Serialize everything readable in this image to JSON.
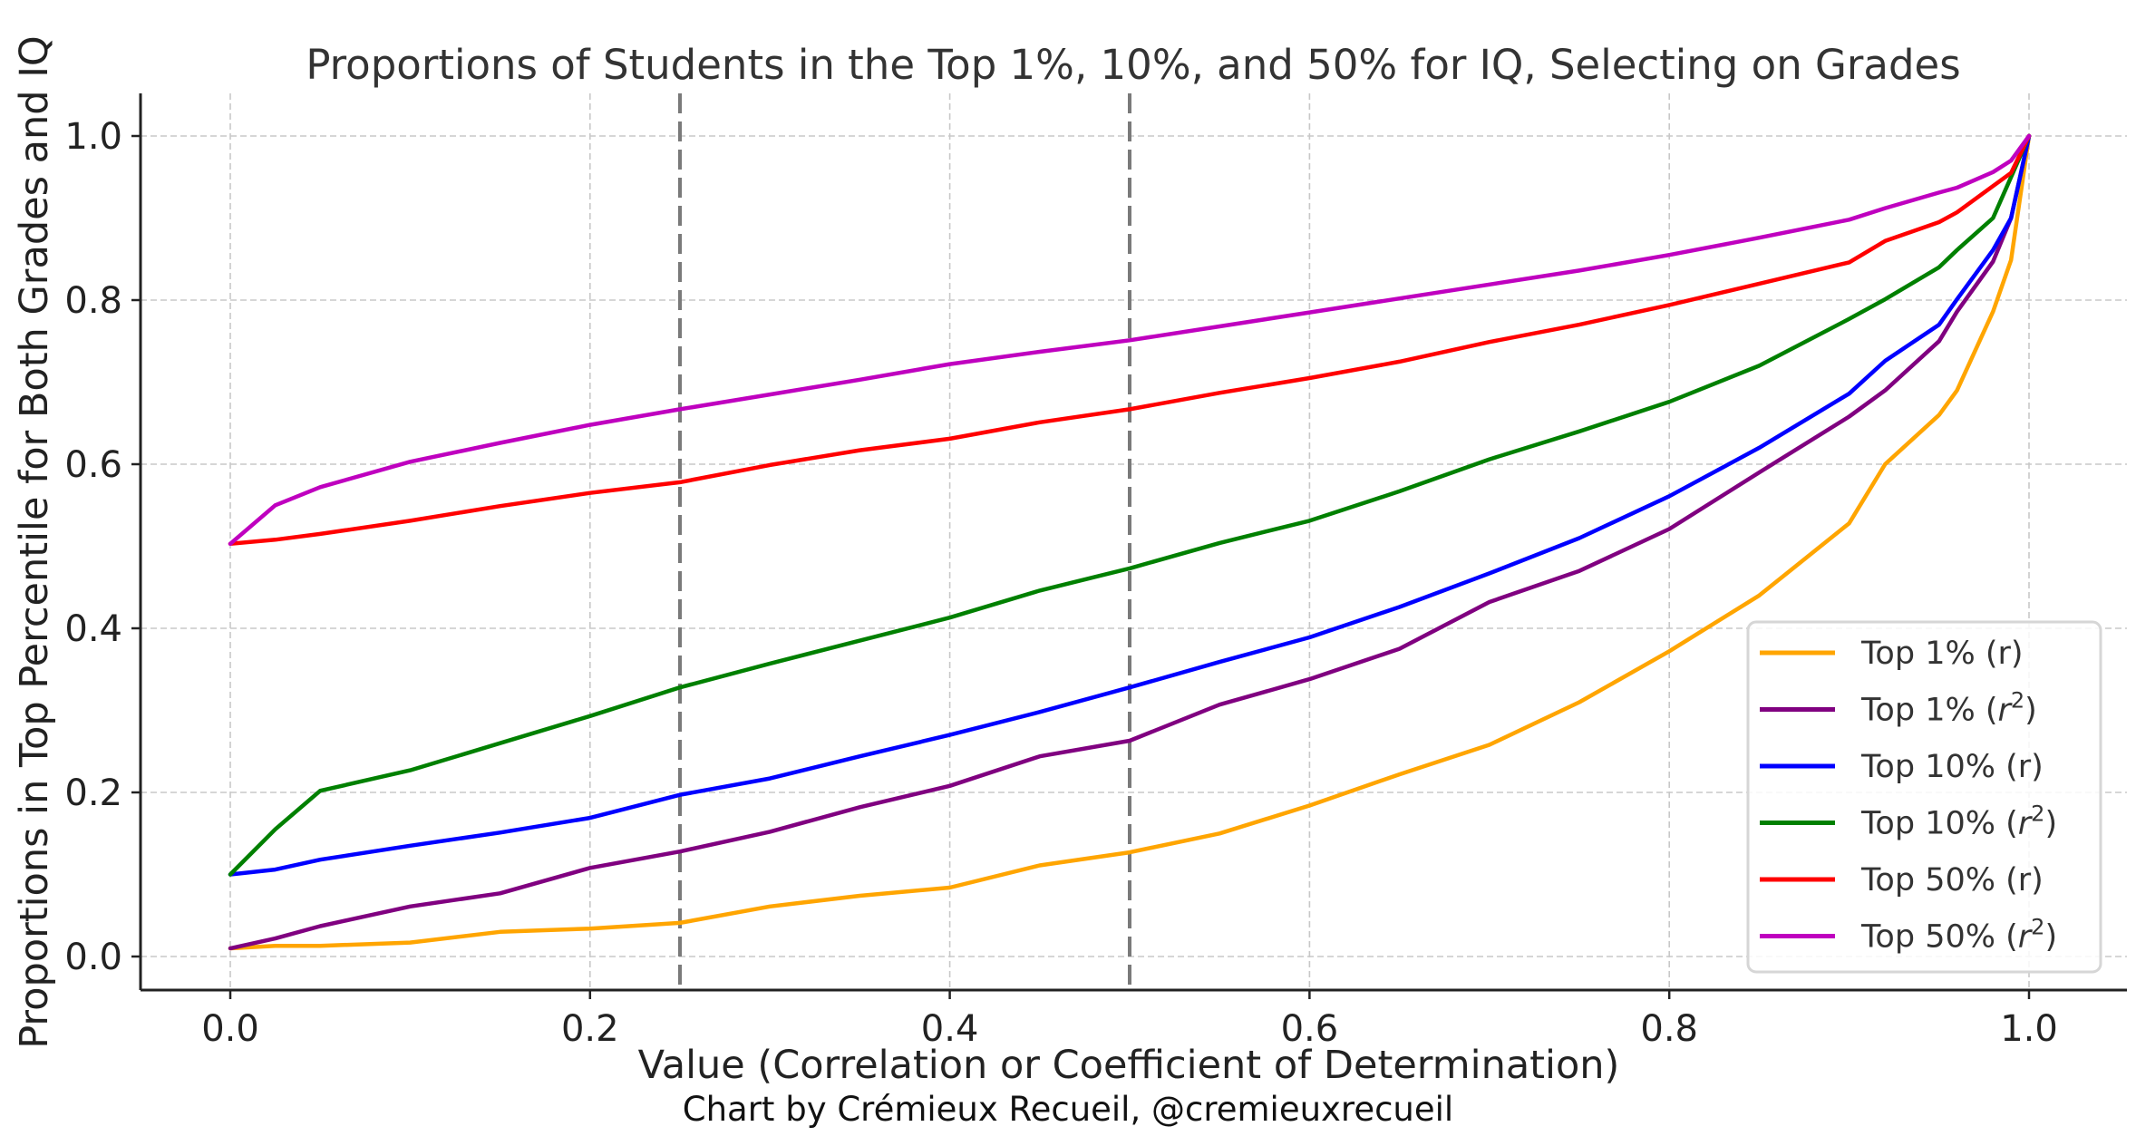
{
  "chart_data": {
    "type": "line",
    "title": "Proportions of Students in the Top 1%, 10%, and 50% for IQ, Selecting on Grades",
    "xlabel": "Value (Correlation or Coefficient of Determination)",
    "ylabel": "Proportions in Top Percentile for Both Grades and IQ",
    "footer": "Chart by Crémieux Recueil, @cremieuxrecueil",
    "xlim": [
      -0.05,
      1.05
    ],
    "ylim": [
      -0.04,
      1.05
    ],
    "xticks": [
      0.0,
      0.2,
      0.4,
      0.6,
      0.8,
      1.0
    ],
    "xtick_labels": [
      "0.0",
      "0.2",
      "0.4",
      "0.6",
      "0.8",
      "1.0"
    ],
    "yticks": [
      0.0,
      0.2,
      0.4,
      0.6,
      0.8,
      1.0
    ],
    "ytick_labels": [
      "0.0",
      "0.2",
      "0.4",
      "0.6",
      "0.8",
      "1.0"
    ],
    "grid": true,
    "reference_lines": [
      {
        "axis": "x",
        "value": 0.25,
        "color": "#7a7a7a",
        "style": "dashed"
      },
      {
        "axis": "x",
        "value": 0.5,
        "color": "#7a7a7a",
        "style": "dashed"
      }
    ],
    "legend": {
      "position": "lower-right"
    },
    "x": [
      0.0,
      0.025,
      0.05,
      0.1,
      0.15,
      0.2,
      0.25,
      0.3,
      0.35,
      0.4,
      0.45,
      0.5,
      0.55,
      0.6,
      0.65,
      0.7,
      0.75,
      0.8,
      0.85,
      0.9,
      0.92,
      0.95,
      0.96,
      0.98,
      0.99,
      1.0
    ],
    "series": [
      {
        "name": "Top 1% (r)",
        "label_main": "Top 1% (",
        "label_var": "r",
        "label_sup": "",
        "label_end": ")",
        "italic": false,
        "color": "#FFA500",
        "values": [
          0.01,
          0.013,
          0.013,
          0.017,
          0.03,
          0.034,
          0.041,
          0.061,
          0.074,
          0.084,
          0.111,
          0.127,
          0.15,
          0.184,
          0.222,
          0.258,
          0.31,
          0.372,
          0.44,
          0.528,
          0.6,
          0.66,
          0.69,
          0.786,
          0.849,
          1.0
        ]
      },
      {
        "name": "Top 1% (r²)",
        "label_main": "Top 1% (",
        "label_var": "r",
        "label_sup": "2",
        "label_end": ")",
        "italic": true,
        "color": "#800080",
        "values": [
          0.01,
          0.022,
          0.037,
          0.061,
          0.077,
          0.108,
          0.128,
          0.152,
          0.182,
          0.208,
          0.244,
          0.263,
          0.307,
          0.338,
          0.375,
          0.432,
          0.47,
          0.521,
          0.59,
          0.658,
          0.69,
          0.75,
          0.786,
          0.847,
          0.9,
          1.0
        ]
      },
      {
        "name": "Top 10% (r)",
        "label_main": "Top 10% (",
        "label_var": "r",
        "label_sup": "",
        "label_end": ")",
        "italic": false,
        "color": "#0000FF",
        "values": [
          0.1,
          0.106,
          0.118,
          0.135,
          0.151,
          0.169,
          0.197,
          0.217,
          0.244,
          0.27,
          0.298,
          0.328,
          0.359,
          0.389,
          0.426,
          0.467,
          0.51,
          0.561,
          0.62,
          0.686,
          0.726,
          0.77,
          0.801,
          0.861,
          0.9,
          1.0
        ]
      },
      {
        "name": "Top 10% (r²)",
        "label_main": "Top 10% (",
        "label_var": "r",
        "label_sup": "2",
        "label_end": ")",
        "italic": true,
        "color": "#008000",
        "values": [
          0.1,
          0.155,
          0.202,
          0.227,
          0.26,
          0.293,
          0.328,
          0.357,
          0.385,
          0.413,
          0.446,
          0.473,
          0.504,
          0.531,
          0.567,
          0.606,
          0.64,
          0.676,
          0.72,
          0.777,
          0.801,
          0.84,
          0.861,
          0.9,
          0.95,
          1.0
        ]
      },
      {
        "name": "Top 50% (r)",
        "label_main": "Top 50% (",
        "label_var": "r",
        "label_sup": "",
        "label_end": ")",
        "italic": false,
        "color": "#FF0000",
        "values": [
          0.503,
          0.508,
          0.515,
          0.531,
          0.549,
          0.565,
          0.578,
          0.599,
          0.617,
          0.631,
          0.651,
          0.667,
          0.687,
          0.705,
          0.725,
          0.749,
          0.77,
          0.794,
          0.82,
          0.846,
          0.872,
          0.895,
          0.907,
          0.939,
          0.955,
          1.0
        ]
      },
      {
        "name": "Top 50% (r²)",
        "label_main": "Top 50% (",
        "label_var": "r",
        "label_sup": "2",
        "label_end": ")",
        "italic": true,
        "color": "#BF00BF",
        "values": [
          0.503,
          0.55,
          0.572,
          0.603,
          0.626,
          0.648,
          0.667,
          0.685,
          0.703,
          0.722,
          0.737,
          0.751,
          0.768,
          0.785,
          0.802,
          0.819,
          0.836,
          0.855,
          0.876,
          0.898,
          0.912,
          0.931,
          0.937,
          0.956,
          0.97,
          1.0
        ]
      }
    ]
  }
}
